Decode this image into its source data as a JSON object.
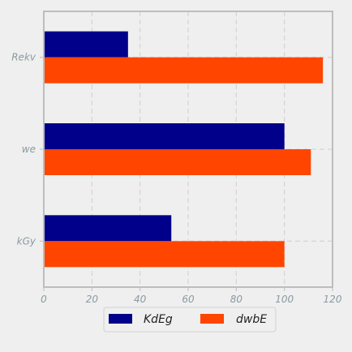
{
  "chart_data": {
    "type": "bar",
    "orientation": "horizontal",
    "categories": [
      "Rekv",
      "we",
      "kGy"
    ],
    "series": [
      {
        "name": "KdEg",
        "color": "#00008b",
        "values": [
          35,
          100,
          53
        ]
      },
      {
        "name": "dwbE",
        "color": "#ff4500",
        "values": [
          116,
          111,
          100
        ]
      }
    ],
    "xlim": [
      0,
      120
    ],
    "xticks": [
      0,
      20,
      40,
      60,
      80,
      100,
      120
    ],
    "title": "",
    "xlabel": "",
    "ylabel": "",
    "grid": true,
    "legend_position": "bottom-center"
  }
}
